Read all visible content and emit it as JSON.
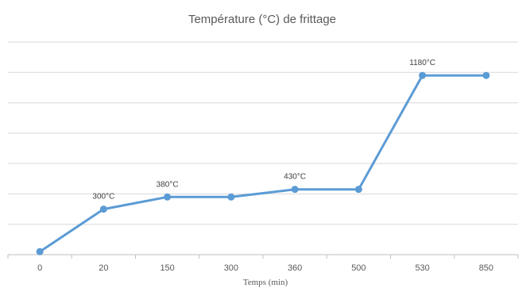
{
  "chart_data": {
    "type": "line",
    "title": "Température (°C) de frittage",
    "xlabel": "Temps (min)",
    "ylabel": "",
    "categories": [
      "0",
      "20",
      "150",
      "300",
      "360",
      "500",
      "530",
      "850"
    ],
    "series": [
      {
        "values": [
          20,
          300,
          380,
          380,
          430,
          430,
          1180,
          1180
        ],
        "color": "#5b9bd5"
      }
    ],
    "data_labels": [
      "",
      "300°C",
      "380°C",
      "",
      "430°C",
      "",
      "1180°C",
      ""
    ],
    "ylim": [
      0,
      1400
    ],
    "y_gridline_step": 200,
    "y_axis_labels_visible": false,
    "grid": true,
    "legend": "none",
    "colors": {
      "gridline": "#d9d9d9",
      "axis": "#bfbfbf",
      "line": "#5b9bd5"
    }
  }
}
